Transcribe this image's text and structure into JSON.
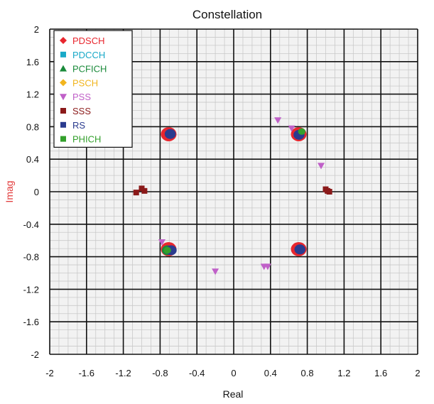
{
  "chart_data": {
    "type": "scatter",
    "title": "Constellation",
    "xlabel": "Real",
    "ylabel": "Imag",
    "xlim": [
      -2,
      2
    ],
    "ylim": [
      -2,
      2
    ],
    "xticks": [
      "-2",
      "-1.6",
      "-1.2",
      "-0.8",
      "-0.4",
      "0",
      "0.4",
      "0.8",
      "1.2",
      "1.6",
      "2"
    ],
    "yticks": [
      "2",
      "1.6",
      "1.2",
      "0.8",
      "0.4",
      "0",
      "-0.4",
      "-0.8",
      "-1.2",
      "-1.6",
      "-2"
    ],
    "grid": true,
    "legend_position": "top-left",
    "series": [
      {
        "name": "PDSCH",
        "color": "#e8262e",
        "marker": "diamond",
        "points": [
          [
            -0.707,
            0.707
          ],
          [
            0.707,
            0.707
          ],
          [
            -0.707,
            -0.707
          ],
          [
            0.707,
            -0.707
          ]
        ],
        "blob_radius": 0.085
      },
      {
        "name": "PDCCH",
        "color": "#19a9c8",
        "marker": "square",
        "points": []
      },
      {
        "name": "PCFICH",
        "color": "#1a8a3a",
        "marker": "triangle-up",
        "points": [
          [
            -0.72,
            -0.72
          ]
        ],
        "blob_radius": 0.06
      },
      {
        "name": "PSCH",
        "color": "#f2b51e",
        "marker": "diamond",
        "points": []
      },
      {
        "name": "PSS",
        "color": "#c060c8",
        "marker": "triangle-down",
        "points": [
          [
            0.48,
            0.88
          ],
          [
            0.63,
            0.78
          ],
          [
            0.95,
            0.32
          ],
          [
            -0.78,
            -0.62
          ],
          [
            -0.2,
            -0.98
          ],
          [
            0.33,
            -0.92
          ],
          [
            0.37,
            -0.92
          ]
        ]
      },
      {
        "name": "SSS",
        "color": "#8b1a1a",
        "marker": "square",
        "points": [
          [
            -1.06,
            -0.01
          ],
          [
            -1.0,
            0.04
          ],
          [
            -0.97,
            0.01
          ],
          [
            1.0,
            0.03
          ],
          [
            1.04,
            0.0
          ],
          [
            1.02,
            0.01
          ]
        ]
      },
      {
        "name": "RS",
        "color": "#2a3b8f",
        "marker": "square",
        "points": [
          [
            -0.69,
            0.71
          ],
          [
            0.71,
            0.7
          ],
          [
            -0.68,
            -0.72
          ],
          [
            0.72,
            -0.71
          ]
        ],
        "blob_radius": 0.06
      },
      {
        "name": "PHICH",
        "color": "#33a02c",
        "marker": "square",
        "points": [
          [
            0.74,
            0.74
          ],
          [
            -0.72,
            -0.72
          ]
        ],
        "blob_radius": 0.04
      }
    ]
  }
}
